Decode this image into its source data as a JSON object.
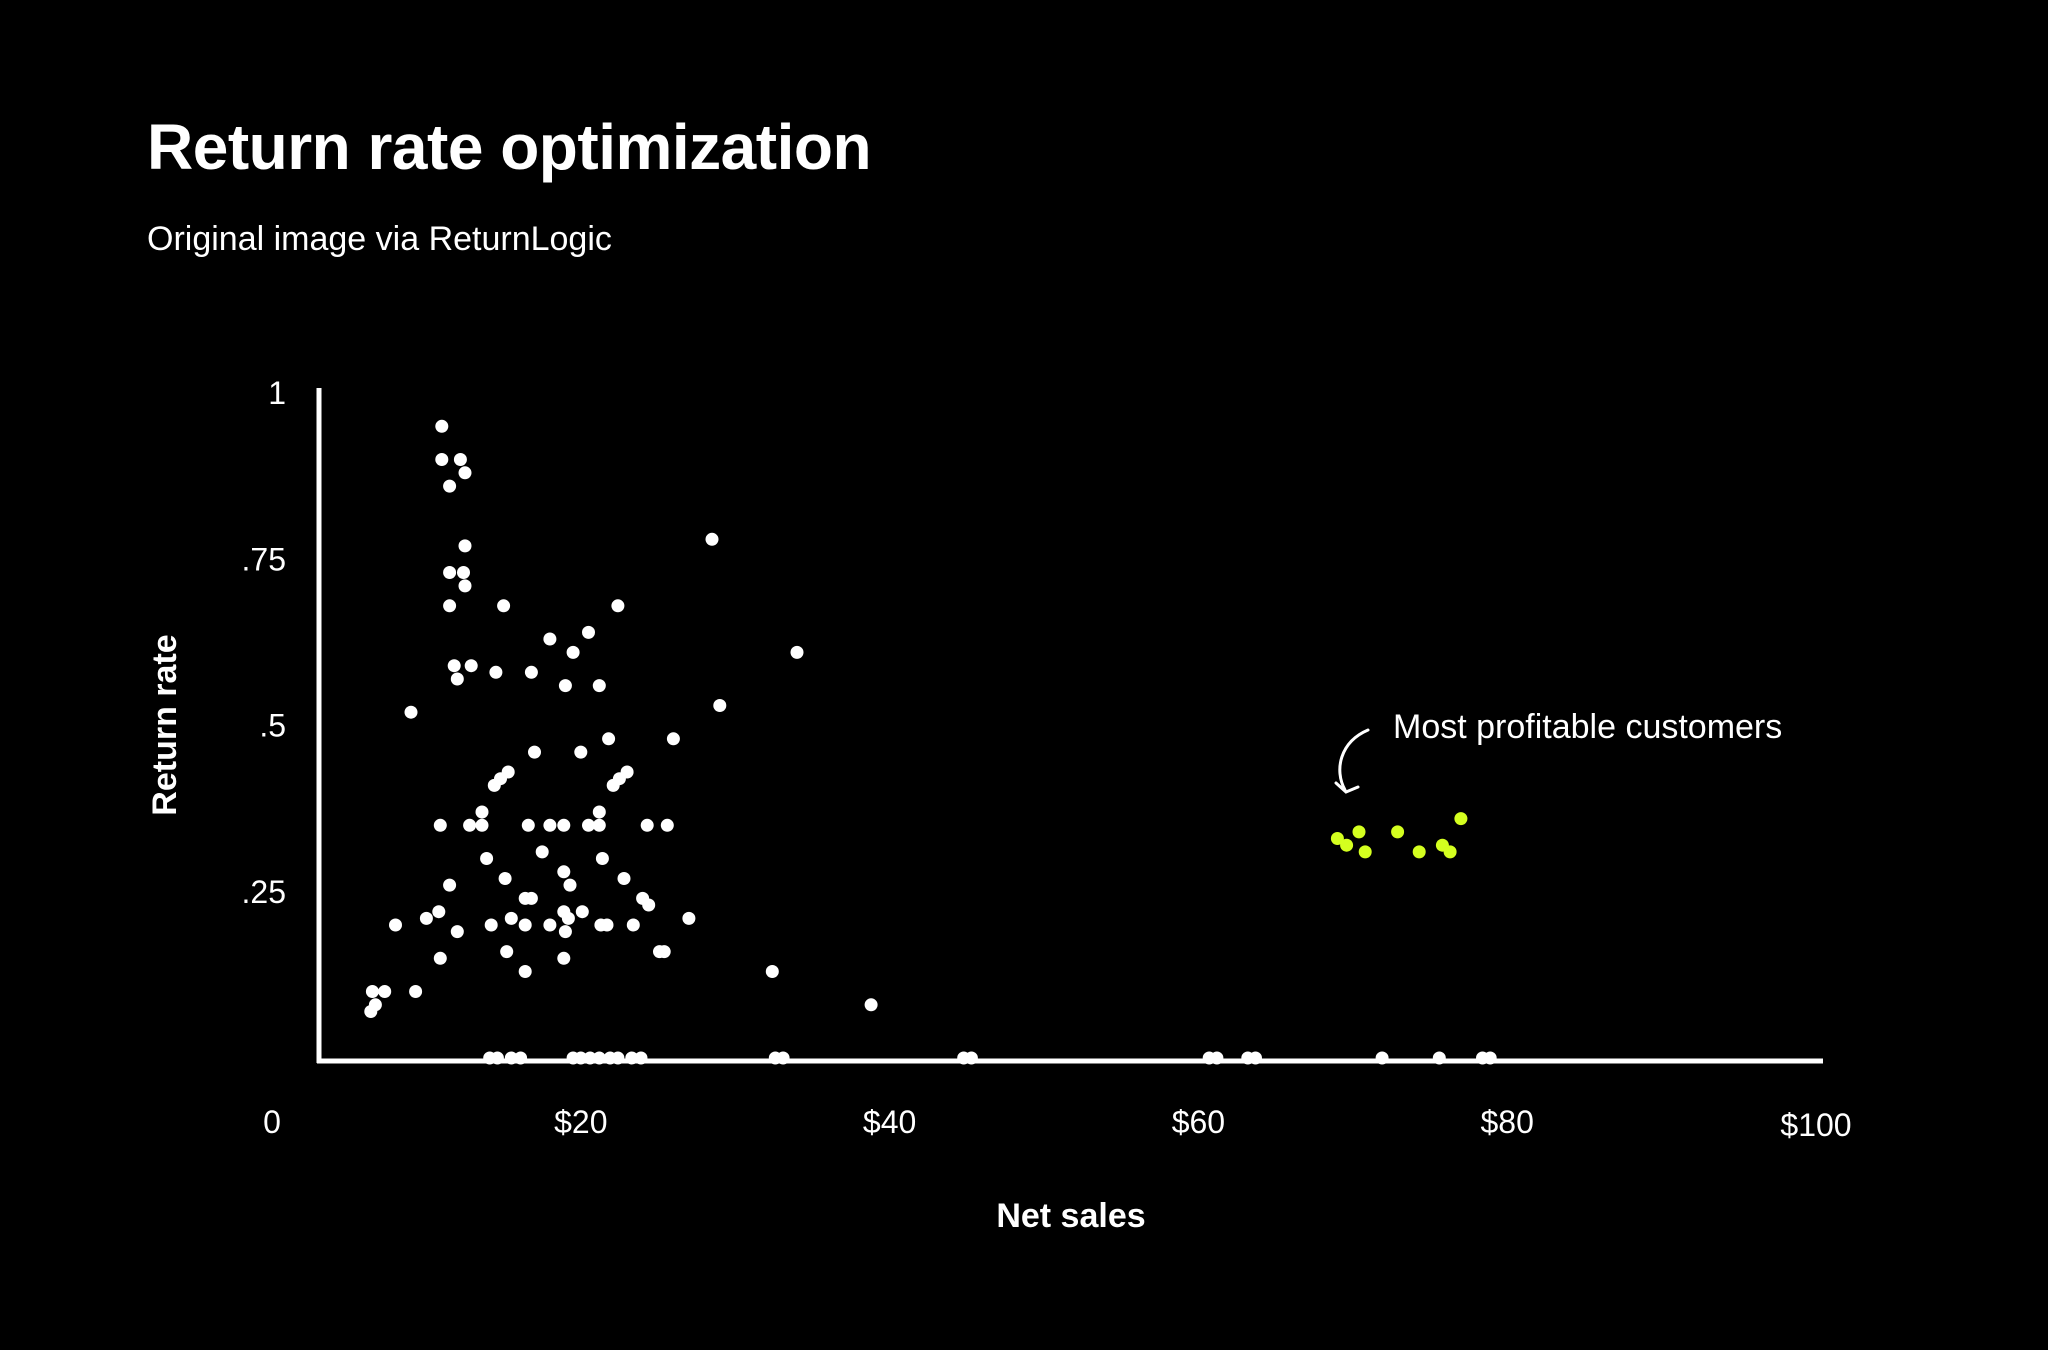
{
  "title": "Return rate optimization",
  "subtitle": "Original image via ReturnLogic",
  "chart_data": {
    "type": "scatter",
    "xlabel": "Net sales",
    "ylabel": "Return rate",
    "xlim": [
      0,
      100
    ],
    "ylim": [
      0,
      1
    ],
    "x_ticks": [
      {
        "value": 0,
        "label": "0"
      },
      {
        "value": 20,
        "label": "$20"
      },
      {
        "value": 40,
        "label": "$40"
      },
      {
        "value": 60,
        "label": "$60"
      },
      {
        "value": 80,
        "label": "$80"
      },
      {
        "value": 100,
        "label": "$100"
      }
    ],
    "y_ticks": [
      {
        "value": 0.25,
        "label": ".25"
      },
      {
        "value": 0.5,
        "label": ".5"
      },
      {
        "value": 0.75,
        "label": ".75"
      },
      {
        "value": 1,
        "label": "1"
      }
    ],
    "grid": false,
    "colors": {
      "background": "#000000",
      "points": "#ffffff",
      "highlight": "#d4ff1f",
      "axis": "#ffffff"
    },
    "series": [
      {
        "color": "#ffffff",
        "points": [
          [
            11,
            0.95
          ],
          [
            11.0,
            0.9
          ],
          [
            12.2,
            0.9
          ],
          [
            12.5,
            0.88
          ],
          [
            11.5,
            0.86
          ],
          [
            12.5,
            0.77
          ],
          [
            11.5,
            0.73
          ],
          [
            12.4,
            0.73
          ],
          [
            12.5,
            0.71
          ],
          [
            11.5,
            0.68
          ],
          [
            11.8,
            0.59
          ],
          [
            12.9,
            0.59
          ],
          [
            12.0,
            0.57
          ],
          [
            9.0,
            0.52
          ],
          [
            28.5,
            0.78
          ],
          [
            15.0,
            0.68
          ],
          [
            22.4,
            0.68
          ],
          [
            20.5,
            0.64
          ],
          [
            18.0,
            0.63
          ],
          [
            19.5,
            0.61
          ],
          [
            34.0,
            0.61
          ],
          [
            14.5,
            0.58
          ],
          [
            16.8,
            0.58
          ],
          [
            19.0,
            0.56
          ],
          [
            21.2,
            0.56
          ],
          [
            29.0,
            0.53
          ],
          [
            26.0,
            0.48
          ],
          [
            21.8,
            0.48
          ],
          [
            17.0,
            0.46
          ],
          [
            20.0,
            0.46
          ],
          [
            23.0,
            0.43
          ],
          [
            22.5,
            0.42
          ],
          [
            22.1,
            0.41
          ],
          [
            15.3,
            0.43
          ],
          [
            14.8,
            0.42
          ],
          [
            14.4,
            0.41
          ],
          [
            13.6,
            0.37
          ],
          [
            21.2,
            0.37
          ],
          [
            10.9,
            0.35
          ],
          [
            12.8,
            0.35
          ],
          [
            13.6,
            0.35
          ],
          [
            16.6,
            0.35
          ],
          [
            18.0,
            0.35
          ],
          [
            18.9,
            0.35
          ],
          [
            20.5,
            0.35
          ],
          [
            21.2,
            0.35
          ],
          [
            24.3,
            0.35
          ],
          [
            25.6,
            0.35
          ],
          [
            17.5,
            0.31
          ],
          [
            13.9,
            0.3
          ],
          [
            21.4,
            0.3
          ],
          [
            18.9,
            0.28
          ],
          [
            15.1,
            0.27
          ],
          [
            22.8,
            0.27
          ],
          [
            11.5,
            0.26
          ],
          [
            19.3,
            0.26
          ],
          [
            16.4,
            0.24
          ],
          [
            16.8,
            0.24
          ],
          [
            24.0,
            0.24
          ],
          [
            24.4,
            0.23
          ],
          [
            10.8,
            0.22
          ],
          [
            18.9,
            0.22
          ],
          [
            20.1,
            0.22
          ],
          [
            10.0,
            0.21
          ],
          [
            15.5,
            0.21
          ],
          [
            19.2,
            0.21
          ],
          [
            27.0,
            0.21
          ],
          [
            8.0,
            0.2
          ],
          [
            14.2,
            0.2
          ],
          [
            16.4,
            0.2
          ],
          [
            18.0,
            0.2
          ],
          [
            21.3,
            0.2
          ],
          [
            21.7,
            0.2
          ],
          [
            23.4,
            0.2
          ],
          [
            12.0,
            0.19
          ],
          [
            19.0,
            0.19
          ],
          [
            15.2,
            0.16
          ],
          [
            25.1,
            0.16
          ],
          [
            25.4,
            0.16
          ],
          [
            10.9,
            0.15
          ],
          [
            18.9,
            0.15
          ],
          [
            16.4,
            0.13
          ],
          [
            32.4,
            0.13
          ],
          [
            6.5,
            0.1
          ],
          [
            7.3,
            0.1
          ],
          [
            9.3,
            0.1
          ],
          [
            6.7,
            0.08
          ],
          [
            6.4,
            0.07
          ],
          [
            38.8,
            0.08
          ],
          [
            14.1,
            0.0
          ],
          [
            14.6,
            0.0
          ],
          [
            15.5,
            0.0
          ],
          [
            16.1,
            0.0
          ],
          [
            19.5,
            0.0
          ],
          [
            20.0,
            0.0
          ],
          [
            20.6,
            0.0
          ],
          [
            21.2,
            0.0
          ],
          [
            21.9,
            0.0
          ],
          [
            22.4,
            0.0
          ],
          [
            23.3,
            0.0
          ],
          [
            23.9,
            0.0
          ],
          [
            32.6,
            0.0
          ],
          [
            33.1,
            0.0
          ],
          [
            44.8,
            0.0
          ],
          [
            45.3,
            0.0
          ],
          [
            60.7,
            0.0
          ],
          [
            61.2,
            0.0
          ],
          [
            63.2,
            0.0
          ],
          [
            63.7,
            0.0
          ],
          [
            71.9,
            0.0
          ],
          [
            75.6,
            0.0
          ],
          [
            78.4,
            0.0
          ],
          [
            78.9,
            0.0
          ]
        ]
      },
      {
        "color": "#d4ff1f",
        "points": [
          [
            69.0,
            0.33
          ],
          [
            69.6,
            0.32
          ],
          [
            70.4,
            0.34
          ],
          [
            70.8,
            0.31
          ],
          [
            72.9,
            0.34
          ],
          [
            74.3,
            0.31
          ],
          [
            75.8,
            0.32
          ],
          [
            76.3,
            0.31
          ],
          [
            77.0,
            0.36
          ]
        ]
      }
    ],
    "annotations": [
      {
        "text": "Most profitable customers",
        "x": 70.5,
        "y": 0.5
      }
    ]
  }
}
